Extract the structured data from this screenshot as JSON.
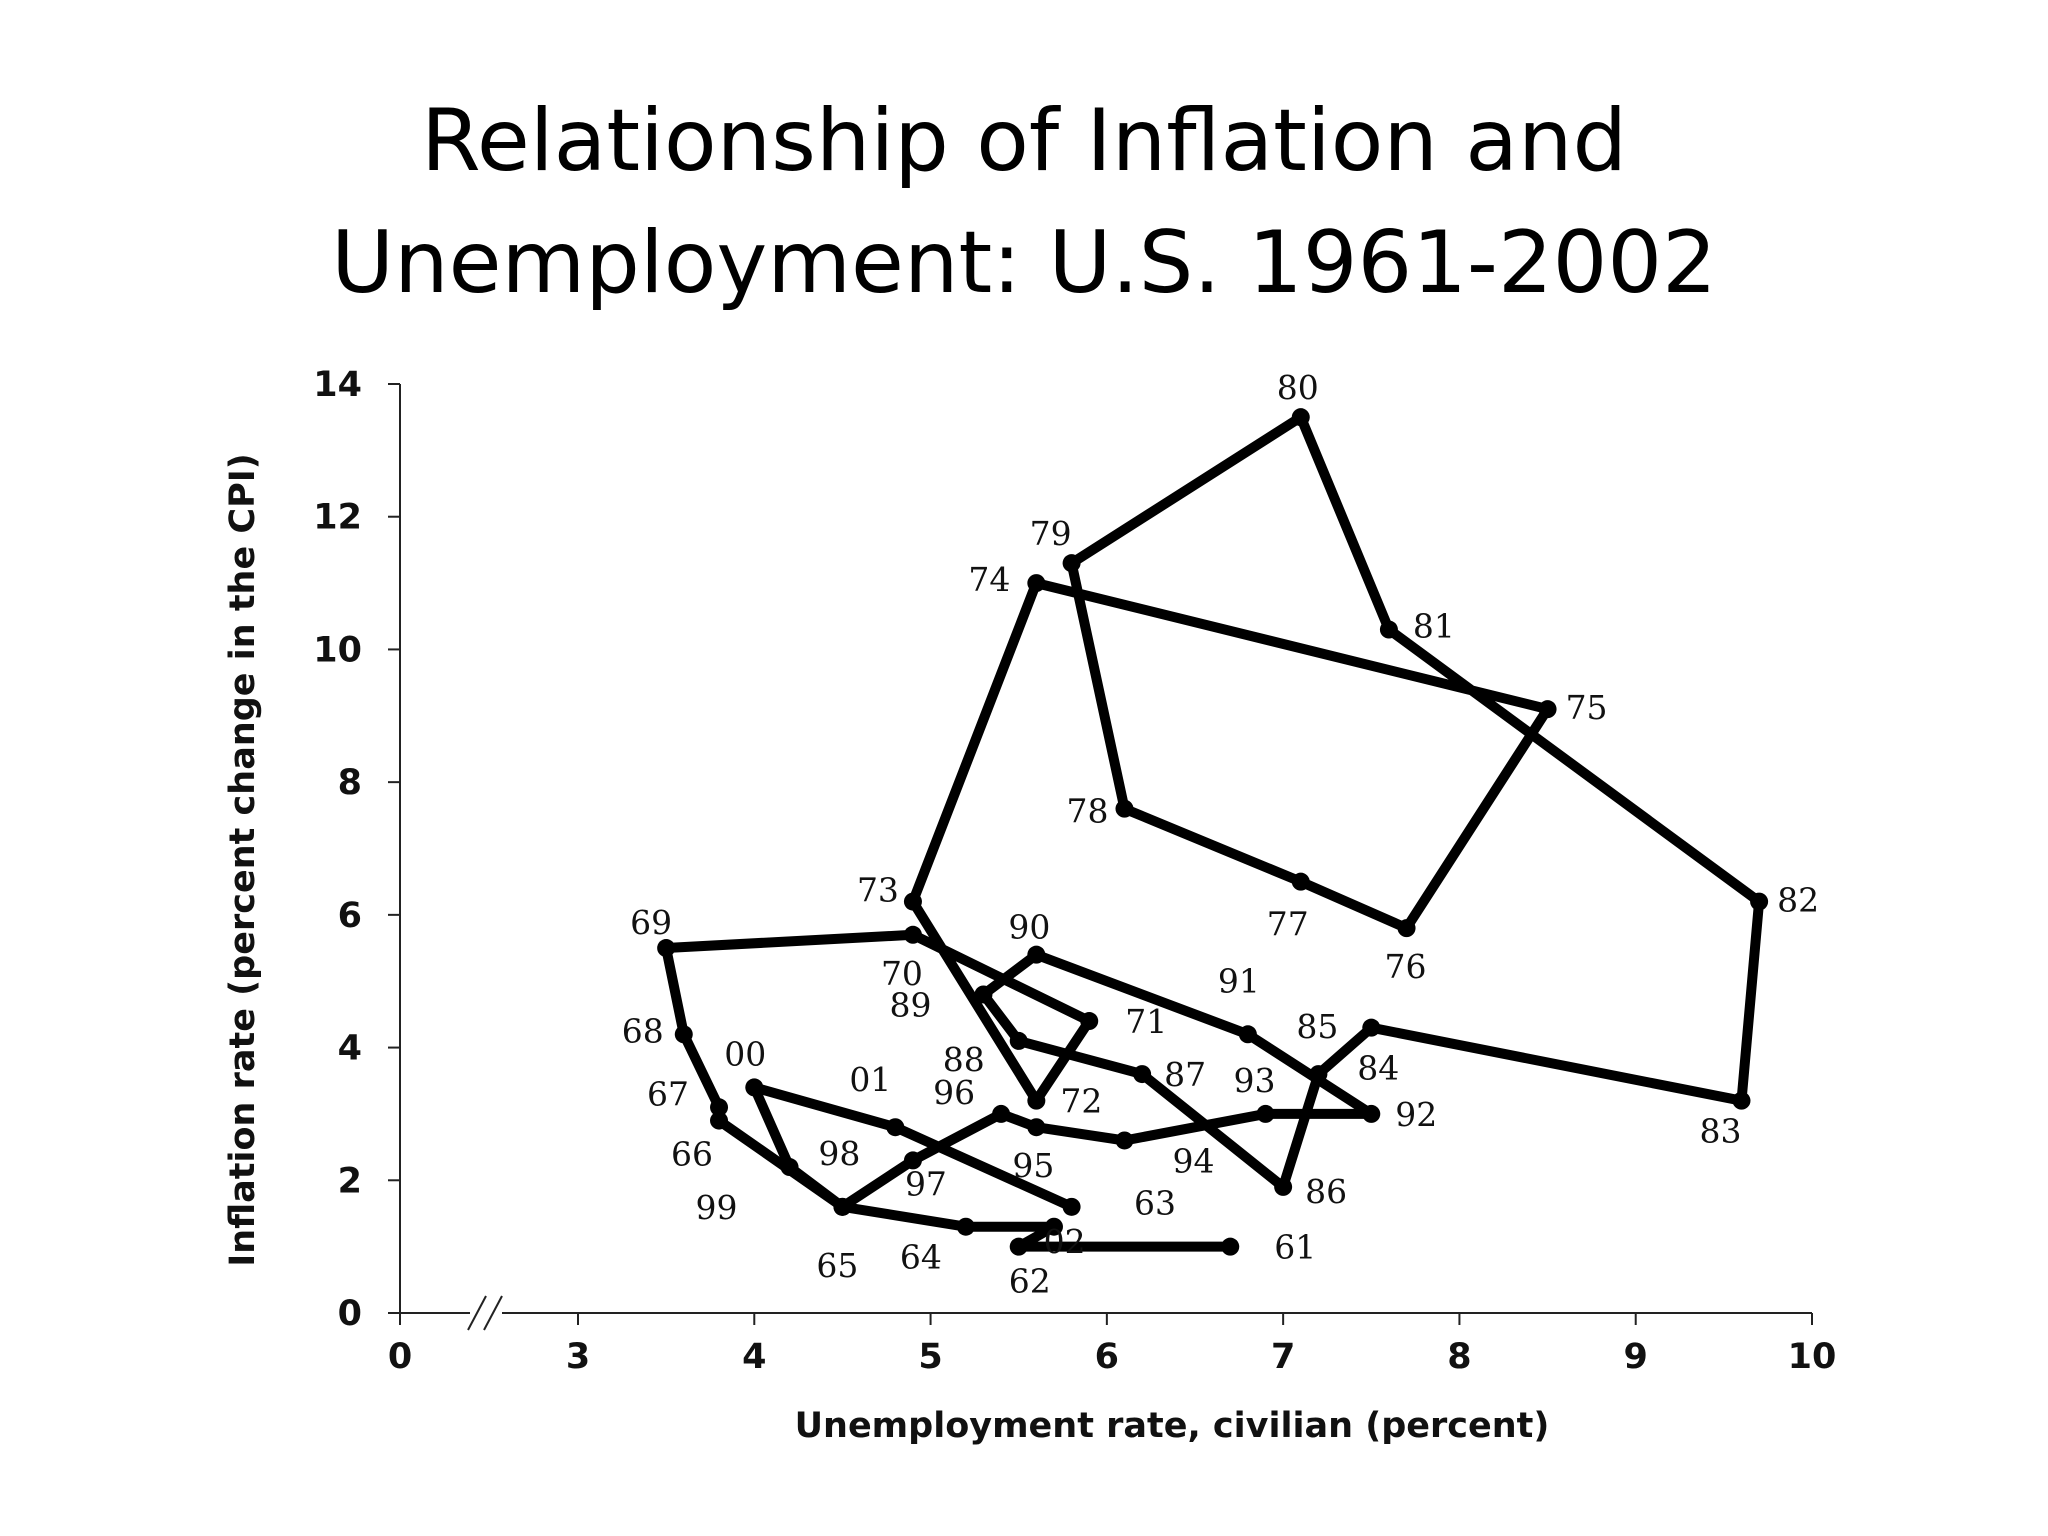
{
  "slide": {
    "title_line1": "Relationship of Inflation and",
    "title_line2": "Unemployment: U.S. 1961-2002"
  },
  "chart_data": {
    "type": "line",
    "title": "Relationship of Inflation and Unemployment: U.S. 1961-2002",
    "xlabel": "Unemployment rate, civilian (percent)",
    "ylabel": "Inflation rate (percent change in the CPI)",
    "xlim": [
      0,
      10
    ],
    "ylim": [
      0,
      14
    ],
    "x_break": "//",
    "x_ticks": [
      "0",
      "3",
      "4",
      "5",
      "6",
      "7",
      "8",
      "9",
      "10"
    ],
    "y_ticks": [
      "0",
      "2",
      "4",
      "6",
      "8",
      "10",
      "12",
      "14"
    ],
    "grid": false,
    "legend": "none",
    "line_color": "#000000",
    "series": [
      {
        "points": [
          {
            "label": "61",
            "x": 6.7,
            "y": 1.0
          },
          {
            "label": "62",
            "x": 5.5,
            "y": 1.0
          },
          {
            "label": "63",
            "x": 5.7,
            "y": 1.3
          },
          {
            "label": "64",
            "x": 5.2,
            "y": 1.3
          },
          {
            "label": "65",
            "x": 4.5,
            "y": 1.6
          },
          {
            "label": "66",
            "x": 3.8,
            "y": 2.9
          },
          {
            "label": "67",
            "x": 3.8,
            "y": 3.1
          },
          {
            "label": "68",
            "x": 3.6,
            "y": 4.2
          },
          {
            "label": "69",
            "x": 3.5,
            "y": 5.5
          },
          {
            "label": "70",
            "x": 4.9,
            "y": 5.7
          },
          {
            "label": "71",
            "x": 5.9,
            "y": 4.4
          },
          {
            "label": "72",
            "x": 5.6,
            "y": 3.2
          },
          {
            "label": "73",
            "x": 4.9,
            "y": 6.2
          },
          {
            "label": "74",
            "x": 5.6,
            "y": 11.0
          },
          {
            "label": "75",
            "x": 8.5,
            "y": 9.1
          },
          {
            "label": "76",
            "x": 7.7,
            "y": 5.8
          },
          {
            "label": "77",
            "x": 7.1,
            "y": 6.5
          },
          {
            "label": "78",
            "x": 6.1,
            "y": 7.6
          },
          {
            "label": "79",
            "x": 5.8,
            "y": 11.3
          },
          {
            "label": "80",
            "x": 7.1,
            "y": 13.5
          },
          {
            "label": "81",
            "x": 7.6,
            "y": 10.3
          },
          {
            "label": "82",
            "x": 9.7,
            "y": 6.2
          },
          {
            "label": "83",
            "x": 9.6,
            "y": 3.2
          },
          {
            "label": "84",
            "x": 7.5,
            "y": 4.3
          },
          {
            "label": "85",
            "x": 7.2,
            "y": 3.6
          },
          {
            "label": "86",
            "x": 7.0,
            "y": 1.9
          },
          {
            "label": "87",
            "x": 6.2,
            "y": 3.6
          },
          {
            "label": "88",
            "x": 5.5,
            "y": 4.1
          },
          {
            "label": "89",
            "x": 5.3,
            "y": 4.8
          },
          {
            "label": "90",
            "x": 5.6,
            "y": 5.4
          },
          {
            "label": "91",
            "x": 6.8,
            "y": 4.2
          },
          {
            "label": "92",
            "x": 7.5,
            "y": 3.0
          },
          {
            "label": "93",
            "x": 6.9,
            "y": 3.0
          },
          {
            "label": "94",
            "x": 6.1,
            "y": 2.6
          },
          {
            "label": "95",
            "x": 5.6,
            "y": 2.8
          },
          {
            "label": "96",
            "x": 5.4,
            "y": 3.0
          },
          {
            "label": "97",
            "x": 4.9,
            "y": 2.3
          },
          {
            "label": "98",
            "x": 4.5,
            "y": 1.6
          },
          {
            "label": "99",
            "x": 4.2,
            "y": 2.2
          },
          {
            "label": "00",
            "x": 4.0,
            "y": 3.4
          },
          {
            "label": "01",
            "x": 4.8,
            "y": 2.8
          },
          {
            "label": "02",
            "x": 5.8,
            "y": 1.6
          }
        ]
      }
    ]
  }
}
